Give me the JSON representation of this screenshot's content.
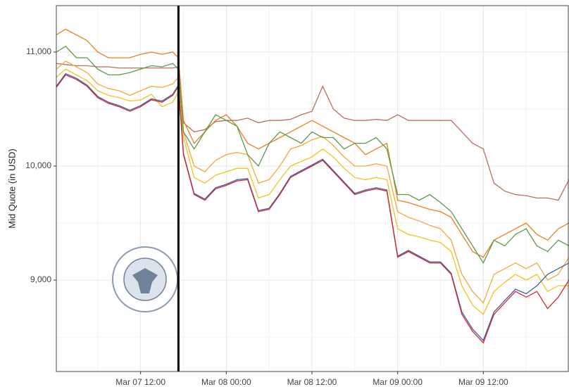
{
  "chart_data": {
    "type": "line",
    "y_label": "Mid Quote (in USD)",
    "x": [
      0.2,
      1.5,
      3,
      4.5,
      6,
      7.5,
      9,
      10.5,
      12,
      13.5,
      15,
      16.5,
      17.3,
      18,
      19.5,
      21,
      22.5,
      24,
      25.5,
      27,
      28.5,
      30,
      31.5,
      33,
      34.5,
      36,
      37.5,
      39,
      40.5,
      42,
      43.5,
      45,
      46.5,
      48,
      49.5,
      51,
      52.5,
      54,
      55.5,
      57,
      58.5,
      60,
      61.5,
      63,
      64.5,
      66,
      67.5,
      69,
      70.5,
      72
    ],
    "series": [
      {
        "color": "#b5705f",
        "values": [
          10900,
          10890,
          10880,
          10880,
          10870,
          10870,
          10860,
          10860,
          10860,
          10860,
          10860,
          10860,
          10870,
          10380,
          10300,
          10320,
          10390,
          10400,
          10400,
          10420,
          10380,
          10400,
          10400,
          10410,
          10450,
          10480,
          10700,
          10500,
          10420,
          10400,
          10400,
          10410,
          10400,
          10450,
          10400,
          10400,
          10400,
          10400,
          10400,
          10300,
          10200,
          10150,
          9850,
          9780,
          9750,
          9740,
          9720,
          9720,
          9700,
          9880
        ]
      },
      {
        "color": "#f0c420",
        "values": [
          10780,
          10850,
          10800,
          10750,
          10660,
          10620,
          10600,
          10570,
          10580,
          10630,
          10520,
          10560,
          10650,
          10250,
          9900,
          9850,
          9920,
          9950,
          9980,
          9980,
          9720,
          9750,
          9880,
          10000,
          10040,
          10080,
          10150,
          10080,
          9980,
          9900,
          9880,
          9900,
          9880,
          9450,
          9400,
          9380,
          9350,
          9330,
          9250,
          8950,
          8780,
          8700,
          8900,
          8980,
          9050,
          9000,
          9050,
          8900,
          8950,
          8950
        ]
      },
      {
        "color": "#f2a93b",
        "values": [
          10850,
          10920,
          10870,
          10820,
          10720,
          10680,
          10660,
          10620,
          10660,
          10700,
          10690,
          10720,
          10780,
          10300,
          10000,
          9950,
          10050,
          10100,
          10120,
          10100,
          9850,
          9880,
          10000,
          10150,
          10180,
          10230,
          10260,
          10180,
          10080,
          10000,
          10000,
          10020,
          10000,
          9600,
          9550,
          9520,
          9480,
          9450,
          9350,
          9050,
          8900,
          8800,
          9050,
          9100,
          9150,
          9100,
          9150,
          9000,
          9050,
          9200
        ]
      },
      {
        "color": "#e8801c",
        "values": [
          11150,
          11200,
          11150,
          11100,
          11000,
          10950,
          10950,
          10950,
          10980,
          11000,
          10980,
          11000,
          10950,
          10400,
          10200,
          10300,
          10400,
          10450,
          10350,
          10200,
          10150,
          10200,
          10250,
          10300,
          10350,
          10400,
          10350,
          10300,
          10250,
          10200,
          10100,
          10150,
          10200,
          9700,
          9680,
          9650,
          9620,
          9600,
          9550,
          9400,
          9250,
          9200,
          9350,
          9400,
          9450,
          9500,
          9400,
          9350,
          9450,
          9500
        ]
      },
      {
        "color": "#5c9a48",
        "values": [
          11000,
          11050,
          10950,
          10950,
          10850,
          10800,
          10800,
          10820,
          10850,
          10880,
          10870,
          10900,
          10850,
          10300,
          10150,
          10300,
          10450,
          10400,
          10350,
          10100,
          10000,
          10200,
          10300,
          10250,
          10200,
          10300,
          10250,
          10250,
          10150,
          10200,
          10200,
          10250,
          10150,
          9750,
          9750,
          9700,
          9750,
          9680,
          9600,
          9450,
          9300,
          9150,
          9350,
          9300,
          9400,
          9450,
          9300,
          9250,
          9350,
          9300
        ]
      },
      {
        "color": "#3e5fa8",
        "values": [
          10700,
          10810,
          10770,
          10710,
          10610,
          10560,
          10530,
          10490,
          10530,
          10590,
          10570,
          10630,
          10710,
          10110,
          9760,
          9710,
          9810,
          9840,
          9880,
          9890,
          9610,
          9630,
          9760,
          9910,
          9960,
          10010,
          10060,
          9960,
          9860,
          9760,
          9790,
          9810,
          9790,
          9210,
          9260,
          9210,
          9160,
          9160,
          9060,
          8720,
          8570,
          8470,
          8720,
          8820,
          8920,
          8880,
          8950,
          9050,
          9100,
          9150
        ]
      },
      {
        "color": "#d42a26",
        "values": [
          10690,
          10800,
          10760,
          10700,
          10600,
          10550,
          10520,
          10480,
          10520,
          10580,
          10560,
          10620,
          10700,
          10100,
          9750,
          9700,
          9800,
          9830,
          9870,
          9880,
          9600,
          9620,
          9750,
          9900,
          9950,
          10000,
          10050,
          9950,
          9850,
          9750,
          9780,
          9800,
          9780,
          9200,
          9250,
          9200,
          9150,
          9150,
          9050,
          8700,
          8550,
          8450,
          8700,
          8800,
          8900,
          8850,
          8900,
          8750,
          8850,
          9000
        ]
      }
    ],
    "event_line": 17.3,
    "xlim": [
      0.2,
      72
    ],
    "ylim": [
      8198,
      11407
    ],
    "xticks": [
      {
        "value": 12,
        "label": "Mar 07 12:00"
      },
      {
        "value": 24,
        "label": "Mar 08 00:00"
      },
      {
        "value": 36,
        "label": "Mar 08 12:00"
      },
      {
        "value": 48,
        "label": "Mar 09 00:00"
      },
      {
        "value": 60,
        "label": "Mar 09 12:00"
      }
    ],
    "yticks": [
      {
        "value": 9000,
        "label": "9,000"
      },
      {
        "value": 10000,
        "label": "10,000"
      },
      {
        "value": 11000,
        "label": "11,000"
      }
    ],
    "minor_xticks": [
      6,
      18,
      30,
      42,
      54,
      66
    ],
    "minor_yticks": [
      8500,
      9500,
      10500
    ],
    "grid": true
  }
}
